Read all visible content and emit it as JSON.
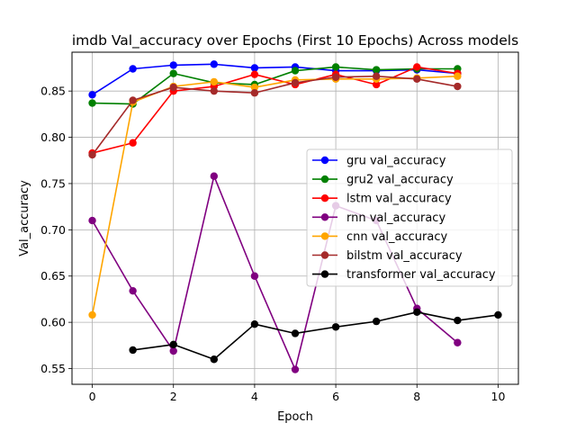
{
  "chart_data": {
    "type": "line",
    "title": "imdb Val_accuracy over Epochs (First 10 Epochs) Across models",
    "xlabel": "Epoch",
    "ylabel": "Val_accuracy",
    "xlim": [
      -0.5,
      10.5
    ],
    "ylim": [
      0.533,
      0.892
    ],
    "xticks": [
      0,
      2,
      4,
      6,
      8,
      10
    ],
    "yticks": [
      0.55,
      0.6,
      0.65,
      0.7,
      0.75,
      0.8,
      0.85
    ],
    "grid": true,
    "legend_position": "center-right",
    "series": [
      {
        "name": "gru val_accuracy",
        "color": "#0000ff",
        "x": [
          0,
          1,
          2,
          3,
          4,
          5,
          6,
          7,
          8,
          9
        ],
        "y": [
          0.846,
          0.874,
          0.878,
          0.879,
          0.875,
          0.876,
          0.872,
          0.872,
          0.873,
          0.869
        ]
      },
      {
        "name": "gru2 val_accuracy",
        "color": "#008000",
        "x": [
          0,
          1,
          2,
          3,
          4,
          5,
          6,
          7,
          8,
          9
        ],
        "y": [
          0.837,
          0.836,
          0.869,
          0.859,
          0.857,
          0.872,
          0.876,
          0.873,
          0.874,
          0.874
        ]
      },
      {
        "name": "lstm val_accuracy",
        "color": "#ff0000",
        "x": [
          0,
          1,
          2,
          3,
          4,
          5,
          6,
          7,
          8,
          9
        ],
        "y": [
          0.783,
          0.794,
          0.85,
          0.855,
          0.868,
          0.857,
          0.868,
          0.857,
          0.876,
          0.869
        ]
      },
      {
        "name": "rnn val_accuracy",
        "color": "#800080",
        "x": [
          0,
          1,
          2,
          3,
          4,
          5,
          6,
          7,
          8,
          9
        ],
        "y": [
          0.71,
          0.634,
          0.569,
          0.758,
          0.65,
          0.549,
          0.726,
          0.71,
          0.615,
          0.578
        ]
      },
      {
        "name": "cnn val_accuracy",
        "color": "#ffa500",
        "x": [
          0,
          1,
          2,
          3,
          4,
          5,
          6,
          7,
          8,
          9
        ],
        "y": [
          0.608,
          0.838,
          0.855,
          0.86,
          0.854,
          0.862,
          0.863,
          0.863,
          0.864,
          0.866
        ]
      },
      {
        "name": "bilstm val_accuracy",
        "color": "#a52a2a",
        "x": [
          0,
          1,
          2,
          3,
          4,
          5,
          6,
          7,
          8,
          9
        ],
        "y": [
          0.781,
          0.84,
          0.854,
          0.85,
          0.848,
          0.859,
          0.865,
          0.866,
          0.863,
          0.855
        ]
      },
      {
        "name": "transformer val_accuracy",
        "color": "#000000",
        "x": [
          1,
          2,
          3,
          4,
          5,
          6,
          7,
          8,
          9,
          10
        ],
        "y": [
          0.57,
          0.576,
          0.56,
          0.598,
          0.588,
          0.595,
          0.601,
          0.611,
          0.602,
          0.608
        ]
      }
    ]
  }
}
